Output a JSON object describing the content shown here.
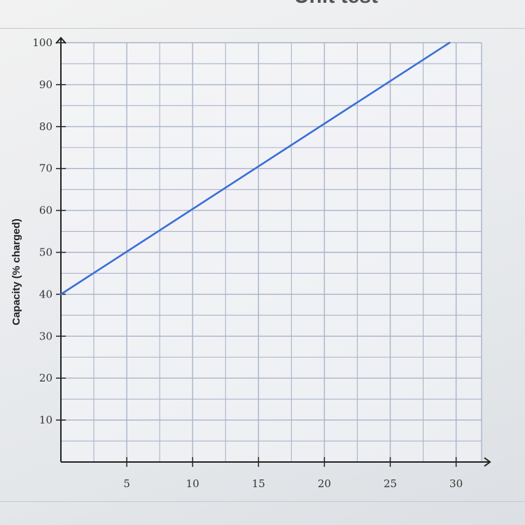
{
  "header": {
    "title": "Unit test"
  },
  "chart_data": {
    "type": "line",
    "title": "",
    "xlabel": "",
    "ylabel": "Capacity (% charged)",
    "xlim": [
      0,
      30
    ],
    "ylim": [
      0,
      100
    ],
    "x_ticks": [
      5,
      10,
      15,
      20,
      25,
      30
    ],
    "y_ticks": [
      10,
      20,
      30,
      40,
      50,
      60,
      70,
      80,
      90,
      100
    ],
    "grid": true,
    "series": [
      {
        "x": [
          0,
          29.5
        ],
        "y": [
          40,
          100
        ]
      }
    ],
    "colors": {
      "line": "#3a6fd8",
      "grid": "#a9b4c8",
      "axis": "#222222"
    }
  }
}
